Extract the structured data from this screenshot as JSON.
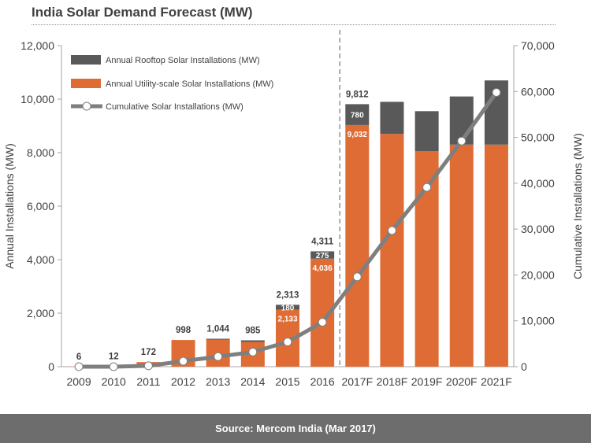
{
  "title": "India Solar Demand Forecast (MW)",
  "source": "Source: Mercom India  (Mar 2017)",
  "colors": {
    "rooftop": "#595959",
    "utility": "#e06c35",
    "cumulative_line": "#7f7f7f",
    "footer_bg": "#6d6d6d"
  },
  "chart_data": {
    "type": "bar",
    "stacked": true,
    "categories": [
      "2009",
      "2010",
      "2011",
      "2012",
      "2013",
      "2014",
      "2015",
      "2016",
      "2017F",
      "2018F",
      "2019F",
      "2020F",
      "2021F"
    ],
    "series": [
      {
        "name": "Annual Utility-scale Solar Installations (MW)",
        "axis": "left",
        "values": [
          6,
          12,
          172,
          998,
          1010,
          925,
          2133,
          4036,
          9032,
          8700,
          8050,
          8300,
          8300
        ]
      },
      {
        "name": "Annual Rooftop Solar Installations (MW)",
        "axis": "left",
        "values": [
          0,
          0,
          0,
          0,
          34,
          60,
          180,
          275,
          780,
          1200,
          1500,
          1800,
          2400
        ]
      },
      {
        "name": "Cumulative Solar Installations (MW)",
        "axis": "right",
        "type": "line",
        "values": [
          0,
          0,
          200,
          1200,
          2200,
          3200,
          5400,
          9700,
          19600,
          29700,
          39100,
          49200,
          59800
        ]
      }
    ],
    "totals": [
      6,
      12,
      172,
      998,
      1044,
      985,
      2313,
      4311,
      9812,
      9900,
      9550,
      10100,
      10700
    ],
    "data_labels": {
      "totals": [
        "6",
        "12",
        "172",
        "998",
        "1,044",
        "985",
        "2,313",
        "4,311",
        "9,812",
        "",
        "",
        "",
        ""
      ],
      "rooftop": [
        "",
        "",
        "",
        "",
        "",
        "",
        "180",
        "275",
        "780",
        "",
        "",
        "",
        ""
      ],
      "utility": [
        "",
        "",
        "",
        "",
        "",
        "",
        "2,133",
        "4,036",
        "9,032",
        "",
        "",
        "",
        ""
      ]
    },
    "ylabel_left": "Annual Installations (MW)",
    "ylabel_right": "Cumulative Installations (MW)",
    "ylim_left": [
      0,
      12000
    ],
    "ylim_right": [
      0,
      70000
    ],
    "yticks_left": [
      "0",
      "2,000",
      "4,000",
      "6,000",
      "8,000",
      "10,000",
      "12,000"
    ],
    "yticks_right": [
      "0",
      "10,000",
      "20,000",
      "30,000",
      "40,000",
      "50,000",
      "60,000",
      "70,000"
    ],
    "forecast_divider_after": "2016",
    "legend_position": "top-left",
    "grid": false
  }
}
